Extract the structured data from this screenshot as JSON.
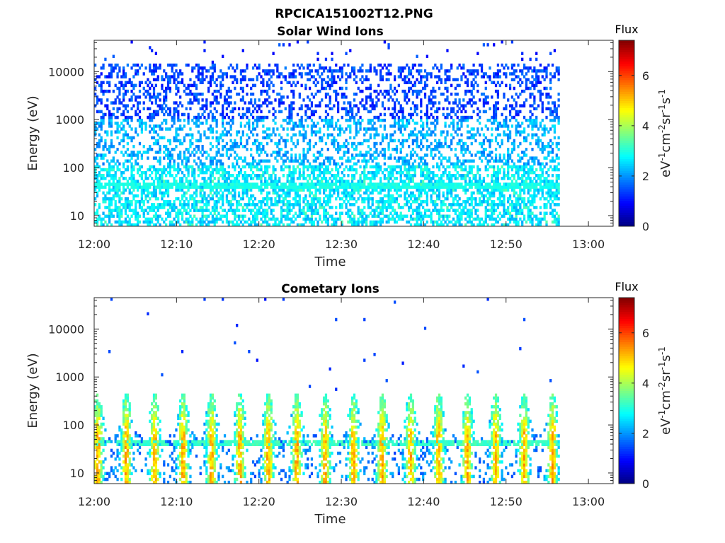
{
  "figure_title": "RPCICA151002T12.PNG",
  "chart_data": [
    {
      "type": "heatmap",
      "title": "Solar Wind Ions",
      "xlabel": "Time",
      "ylabel": "Energy (eV)",
      "x_ticks": [
        "12:00",
        "12:10",
        "12:20",
        "12:30",
        "12:40",
        "12:50",
        "13:00"
      ],
      "x_range_minutes": [
        0,
        63
      ],
      "data_end_minute": 56.5,
      "y_ticks": [
        "10",
        "100",
        "1000",
        "10000"
      ],
      "y_scale": "log",
      "y_range": [
        6,
        45000
      ],
      "colorbar": {
        "title": "Flux",
        "label": "eV-1cm-2sr-1s-1",
        "ticks": [
          "0",
          "2",
          "4",
          "6"
        ],
        "range": [
          0,
          7.4
        ],
        "colormap": "jet"
      },
      "populations": [
        {
          "name_hint": "low-energy band",
          "e_min": 6,
          "e_max": 110,
          "flux": 2.6,
          "density": 0.55
        },
        {
          "name_hint": "mid-energy band",
          "e_min": 110,
          "e_max": 1000,
          "flux": 2.2,
          "density": 0.35
        },
        {
          "name_hint": "high-energy band",
          "e_min": 1000,
          "e_max": 14000,
          "flux": 1.4,
          "density": 0.33
        },
        {
          "name_hint": "sparse top",
          "e_min": 14000,
          "e_max": 45000,
          "flux": 1.2,
          "density": 0.02
        }
      ]
    },
    {
      "type": "heatmap",
      "title": "Cometary Ions",
      "xlabel": "Time",
      "ylabel": "Energy (eV)",
      "x_ticks": [
        "12:00",
        "12:10",
        "12:20",
        "12:30",
        "12:40",
        "12:50",
        "13:00"
      ],
      "x_range_minutes": [
        0,
        63
      ],
      "data_end_minute": 56.5,
      "y_ticks": [
        "10",
        "100",
        "1000",
        "10000"
      ],
      "y_scale": "log",
      "y_range": [
        6,
        45000
      ],
      "colorbar": {
        "title": "Flux",
        "label": "eV-1cm-2sr-1s-1",
        "ticks": [
          "0",
          "2",
          "4",
          "6"
        ],
        "range": [
          0,
          7.4
        ],
        "colormap": "jet"
      },
      "burst_period_minutes": 3.45,
      "burst_peak_flux": 5.2,
      "burst_energy_range": [
        6,
        450
      ]
    }
  ]
}
